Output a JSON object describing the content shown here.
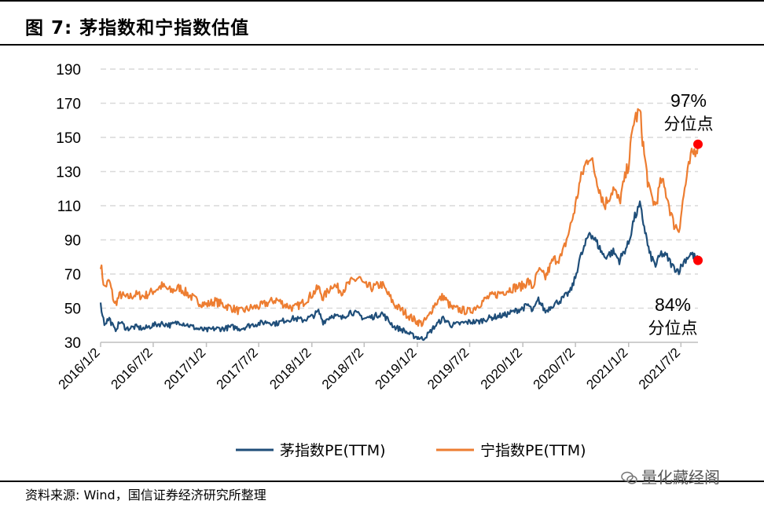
{
  "header": {
    "title": "图 7:  茅指数和宁指数估值"
  },
  "footer": {
    "source": "资料来源: Wind，国信证券经济研究所整理"
  },
  "watermark": {
    "text": "量化藏经阁",
    "icon": "wechat-icon"
  },
  "colors": {
    "series1": "#1f4e79",
    "series2": "#ed7d31",
    "marker": "#ff0000",
    "grid": "#d9d9d9"
  },
  "chart_data": {
    "type": "line",
    "title": "",
    "xlabel": "",
    "ylabel": "",
    "ylim": [
      30,
      190
    ],
    "yticks": [
      30,
      50,
      70,
      90,
      110,
      130,
      150,
      170,
      190
    ],
    "xlim": [
      "2016-01-02",
      "2021-08-30"
    ],
    "xticks": [
      "2016/1/2",
      "2016/7/2",
      "2017/1/2",
      "2017/7/2",
      "2018/1/2",
      "2018/7/2",
      "2019/1/2",
      "2019/7/2",
      "2020/1/2",
      "2020/7/2",
      "2021/1/2",
      "2021/7/2"
    ],
    "grid": "horizontal dashed",
    "legend": "bottom-center",
    "series": [
      {
        "name": "茅指数PE(TTM)",
        "color": "#1f4e79",
        "points": [
          [
            "2016-01-02",
            52
          ],
          [
            "2016-01-15",
            41
          ],
          [
            "2016-02-01",
            44
          ],
          [
            "2016-02-20",
            37
          ],
          [
            "2016-03-10",
            42
          ],
          [
            "2016-04-01",
            38
          ],
          [
            "2016-05-01",
            39
          ],
          [
            "2016-06-01",
            38
          ],
          [
            "2016-07-01",
            40
          ],
          [
            "2016-08-01",
            41
          ],
          [
            "2016-09-01",
            40
          ],
          [
            "2016-10-01",
            42
          ],
          [
            "2016-11-01",
            40
          ],
          [
            "2016-12-01",
            38
          ],
          [
            "2017-01-02",
            37
          ],
          [
            "2017-02-01",
            38
          ],
          [
            "2017-03-01",
            38
          ],
          [
            "2017-04-01",
            39
          ],
          [
            "2017-05-01",
            38
          ],
          [
            "2017-06-01",
            40
          ],
          [
            "2017-07-02",
            41
          ],
          [
            "2017-08-01",
            42
          ],
          [
            "2017-09-01",
            41
          ],
          [
            "2017-10-01",
            43
          ],
          [
            "2017-11-01",
            44
          ],
          [
            "2017-12-01",
            43
          ],
          [
            "2018-01-02",
            45
          ],
          [
            "2018-01-25",
            48
          ],
          [
            "2018-02-10",
            42
          ],
          [
            "2018-03-15",
            46
          ],
          [
            "2018-04-15",
            44
          ],
          [
            "2018-05-15",
            48
          ],
          [
            "2018-06-15",
            46
          ],
          [
            "2018-07-02",
            44
          ],
          [
            "2018-08-01",
            45
          ],
          [
            "2018-09-01",
            47
          ],
          [
            "2018-10-15",
            39
          ],
          [
            "2018-11-15",
            37
          ],
          [
            "2018-12-15",
            34
          ],
          [
            "2019-01-02",
            33
          ],
          [
            "2019-01-20",
            32
          ],
          [
            "2019-02-10",
            35
          ],
          [
            "2019-03-01",
            39
          ],
          [
            "2019-04-01",
            44
          ],
          [
            "2019-05-01",
            40
          ],
          [
            "2019-06-01",
            41
          ],
          [
            "2019-07-02",
            42
          ],
          [
            "2019-08-01",
            42
          ],
          [
            "2019-09-01",
            44
          ],
          [
            "2019-10-01",
            45
          ],
          [
            "2019-11-01",
            46
          ],
          [
            "2019-12-01",
            48
          ],
          [
            "2020-01-02",
            50
          ],
          [
            "2020-01-20",
            52
          ],
          [
            "2020-02-05",
            48
          ],
          [
            "2020-02-25",
            55
          ],
          [
            "2020-03-20",
            48
          ],
          [
            "2020-04-15",
            52
          ],
          [
            "2020-05-15",
            55
          ],
          [
            "2020-06-15",
            60
          ],
          [
            "2020-07-02",
            68
          ],
          [
            "2020-07-15",
            78
          ],
          [
            "2020-08-01",
            85
          ],
          [
            "2020-08-20",
            95
          ],
          [
            "2020-09-15",
            88
          ],
          [
            "2020-10-10",
            80
          ],
          [
            "2020-11-10",
            83
          ],
          [
            "2020-12-01",
            78
          ],
          [
            "2021-01-02",
            88
          ],
          [
            "2021-01-20",
            102
          ],
          [
            "2021-02-10",
            110
          ],
          [
            "2021-02-25",
            98
          ],
          [
            "2021-03-15",
            82
          ],
          [
            "2021-04-05",
            75
          ],
          [
            "2021-04-25",
            82
          ],
          [
            "2021-05-15",
            80
          ],
          [
            "2021-06-05",
            74
          ],
          [
            "2021-06-25",
            72
          ],
          [
            "2021-07-15",
            78
          ],
          [
            "2021-08-05",
            82
          ],
          [
            "2021-08-30",
            78
          ]
        ]
      },
      {
        "name": "宁指数PE(TTM)",
        "color": "#ed7d31",
        "points": [
          [
            "2016-01-02",
            76
          ],
          [
            "2016-01-15",
            62
          ],
          [
            "2016-02-01",
            66
          ],
          [
            "2016-02-20",
            52
          ],
          [
            "2016-03-10",
            58
          ],
          [
            "2016-04-01",
            56
          ],
          [
            "2016-05-01",
            58
          ],
          [
            "2016-06-01",
            57
          ],
          [
            "2016-07-01",
            60
          ],
          [
            "2016-08-01",
            63
          ],
          [
            "2016-09-01",
            60
          ],
          [
            "2016-10-01",
            62
          ],
          [
            "2016-11-01",
            58
          ],
          [
            "2016-12-01",
            54
          ],
          [
            "2017-01-02",
            52
          ],
          [
            "2017-02-01",
            54
          ],
          [
            "2017-03-01",
            52
          ],
          [
            "2017-04-01",
            50
          ],
          [
            "2017-05-01",
            48
          ],
          [
            "2017-06-01",
            50
          ],
          [
            "2017-07-02",
            51
          ],
          [
            "2017-08-01",
            53
          ],
          [
            "2017-09-01",
            55
          ],
          [
            "2017-10-01",
            52
          ],
          [
            "2017-11-01",
            50
          ],
          [
            "2017-12-01",
            53
          ],
          [
            "2018-01-02",
            58
          ],
          [
            "2018-01-25",
            62
          ],
          [
            "2018-02-10",
            56
          ],
          [
            "2018-03-15",
            64
          ],
          [
            "2018-04-15",
            60
          ],
          [
            "2018-05-15",
            65
          ],
          [
            "2018-06-15",
            68
          ],
          [
            "2018-07-02",
            63
          ],
          [
            "2018-08-01",
            62
          ],
          [
            "2018-09-01",
            64
          ],
          [
            "2018-10-15",
            52
          ],
          [
            "2018-11-15",
            48
          ],
          [
            "2018-12-15",
            44
          ],
          [
            "2019-01-02",
            42
          ],
          [
            "2019-01-20",
            41
          ],
          [
            "2019-02-10",
            45
          ],
          [
            "2019-03-01",
            52
          ],
          [
            "2019-04-01",
            57
          ],
          [
            "2019-05-01",
            50
          ],
          [
            "2019-06-01",
            49
          ],
          [
            "2019-07-02",
            48
          ],
          [
            "2019-08-01",
            52
          ],
          [
            "2019-09-01",
            56
          ],
          [
            "2019-10-01",
            58
          ],
          [
            "2019-11-01",
            60
          ],
          [
            "2019-12-01",
            62
          ],
          [
            "2020-01-02",
            63
          ],
          [
            "2020-01-20",
            66
          ],
          [
            "2020-02-05",
            62
          ],
          [
            "2020-02-25",
            72
          ],
          [
            "2020-03-20",
            68
          ],
          [
            "2020-04-15",
            78
          ],
          [
            "2020-05-15",
            80
          ],
          [
            "2020-06-15",
            98
          ],
          [
            "2020-07-02",
            110
          ],
          [
            "2020-07-15",
            122
          ],
          [
            "2020-08-01",
            132
          ],
          [
            "2020-08-20",
            140
          ],
          [
            "2020-09-15",
            125
          ],
          [
            "2020-10-10",
            110
          ],
          [
            "2020-11-10",
            120
          ],
          [
            "2020-12-01",
            112
          ],
          [
            "2021-01-02",
            135
          ],
          [
            "2021-01-20",
            160
          ],
          [
            "2021-02-10",
            165
          ],
          [
            "2021-02-25",
            140
          ],
          [
            "2021-03-15",
            118
          ],
          [
            "2021-04-05",
            110
          ],
          [
            "2021-04-25",
            125
          ],
          [
            "2021-05-15",
            116
          ],
          [
            "2021-06-05",
            100
          ],
          [
            "2021-06-25",
            96
          ],
          [
            "2021-07-15",
            120
          ],
          [
            "2021-08-05",
            138
          ],
          [
            "2021-08-30",
            146
          ]
        ]
      }
    ],
    "annotations": [
      {
        "pct": "97%",
        "label": "分位点",
        "series": 1,
        "date": "2021-08-30",
        "value": 146
      },
      {
        "pct": "84%",
        "label": "分位点",
        "series": 0,
        "date": "2021-08-30",
        "value": 78
      }
    ]
  }
}
